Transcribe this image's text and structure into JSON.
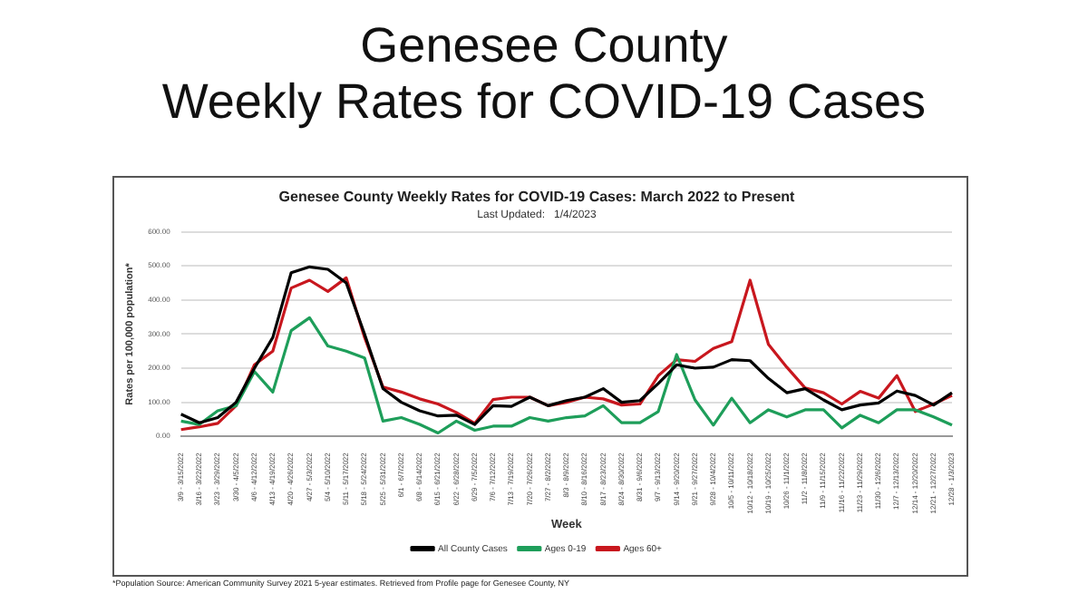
{
  "chart_data": {
    "type": "line",
    "title": "Genesee County Weekly Rates for COVID-19 Cases: March 2022 to Present",
    "subtitle": "Last Updated:   1/4/2023",
    "xlabel": "Week",
    "ylabel": "Rates per 100,000 population*",
    "annotations": [
      "Genesee County\nWeekly Rates for COVID-19 Cases",
      "*Population Source: American Community Survey 2021 5-year estimates. Retrieved from Profile page for Genesee County, NY"
    ],
    "categories": [
      "3/9 - 3/15/2022",
      "3/16 - 3/22/2022",
      "3/23 - 3/29/2022",
      "3/30 - 4/5/2022",
      "4/6 - 4/12/2022",
      "4/13 - 4/19/2022",
      "4/20 - 4/26/2022",
      "4/27 - 5/3/2022",
      "5/4 - 5/10/2022",
      "5/11 - 5/17/2022",
      "5/18 - 5/24/2022",
      "5/25 - 5/31/2022",
      "6/1 - 6/7/2022",
      "6/8 - 6/14/2022",
      "6/15 - 6/21/2022",
      "6/22 - 6/28/2022",
      "6/29 - 7/5/2022",
      "7/6 - 7/12/2022",
      "7/13 - 7/19/2022",
      "7/20 - 7/26/2022",
      "7/27 - 8/2/2022",
      "8/3 - 8/9/2022",
      "8/10 - 8/16/2022",
      "8/17 - 8/23/2022",
      "8/24 - 8/30/2022",
      "8/31 - 9/6/2022",
      "9/7 - 9/13/2022",
      "9/14 - 9/20/2022",
      "9/21 - 9/27/2022",
      "9/28 - 10/4/2022",
      "10/5 - 10/11/2022",
      "10/12 - 10/18/2022",
      "10/19 - 10/25/2022",
      "10/26 - 11/1/2022",
      "11/2 - 11/8/2022",
      "11/9 - 11/15/2022",
      "11/16 - 11/22/2022",
      "11/23 - 11/29/2022",
      "11/30 - 12/6/2022",
      "12/7 - 12/13/2022",
      "12/14 - 12/20/2022",
      "12/21 - 12/27/2022",
      "12/28 - 1/3/2023"
    ],
    "series": [
      {
        "name": "All County Cases",
        "color": "#000000",
        "values": [
          65,
          40,
          55,
          100,
          200,
          290,
          480,
          497,
          490,
          450,
          300,
          140,
          100,
          75,
          60,
          62,
          35,
          90,
          88,
          115,
          90,
          105,
          115,
          140,
          100,
          105,
          155,
          210,
          200,
          203,
          225,
          222,
          170,
          128,
          140,
          107,
          78,
          92,
          98,
          133,
          120,
          92,
          128
        ]
      },
      {
        "name": "Ages 0-19",
        "color": "#1e9e5a",
        "values": [
          45,
          35,
          75,
          90,
          190,
          130,
          310,
          348,
          265,
          250,
          230,
          45,
          55,
          35,
          10,
          45,
          18,
          30,
          30,
          55,
          45,
          55,
          60,
          90,
          40,
          40,
          73,
          240,
          107,
          33,
          112,
          40,
          78,
          57,
          78,
          78,
          25,
          62,
          40,
          78,
          78,
          57,
          33
        ]
      },
      {
        "name": "Ages 60+",
        "color": "#c8171e",
        "values": [
          20,
          28,
          38,
          90,
          210,
          250,
          435,
          458,
          425,
          465,
          290,
          145,
          130,
          110,
          95,
          70,
          38,
          108,
          115,
          115,
          90,
          100,
          115,
          110,
          92,
          95,
          178,
          225,
          220,
          258,
          278,
          458,
          270,
          203,
          142,
          128,
          95,
          132,
          112,
          178,
          73,
          95,
          120
        ]
      }
    ],
    "ylim": [
      0,
      600
    ],
    "yticks": [
      {
        "value": 0,
        "label": "0.00"
      },
      {
        "value": 100,
        "label": "100.00"
      },
      {
        "value": 200,
        "label": "200.00"
      },
      {
        "value": 300,
        "label": "300.00"
      },
      {
        "value": 400,
        "label": "400.00"
      },
      {
        "value": 500,
        "label": "500.00"
      },
      {
        "value": 600,
        "label": "600.00"
      }
    ],
    "grid": "y",
    "legend": "bottom",
    "marker": "none",
    "line_style": "solid"
  }
}
